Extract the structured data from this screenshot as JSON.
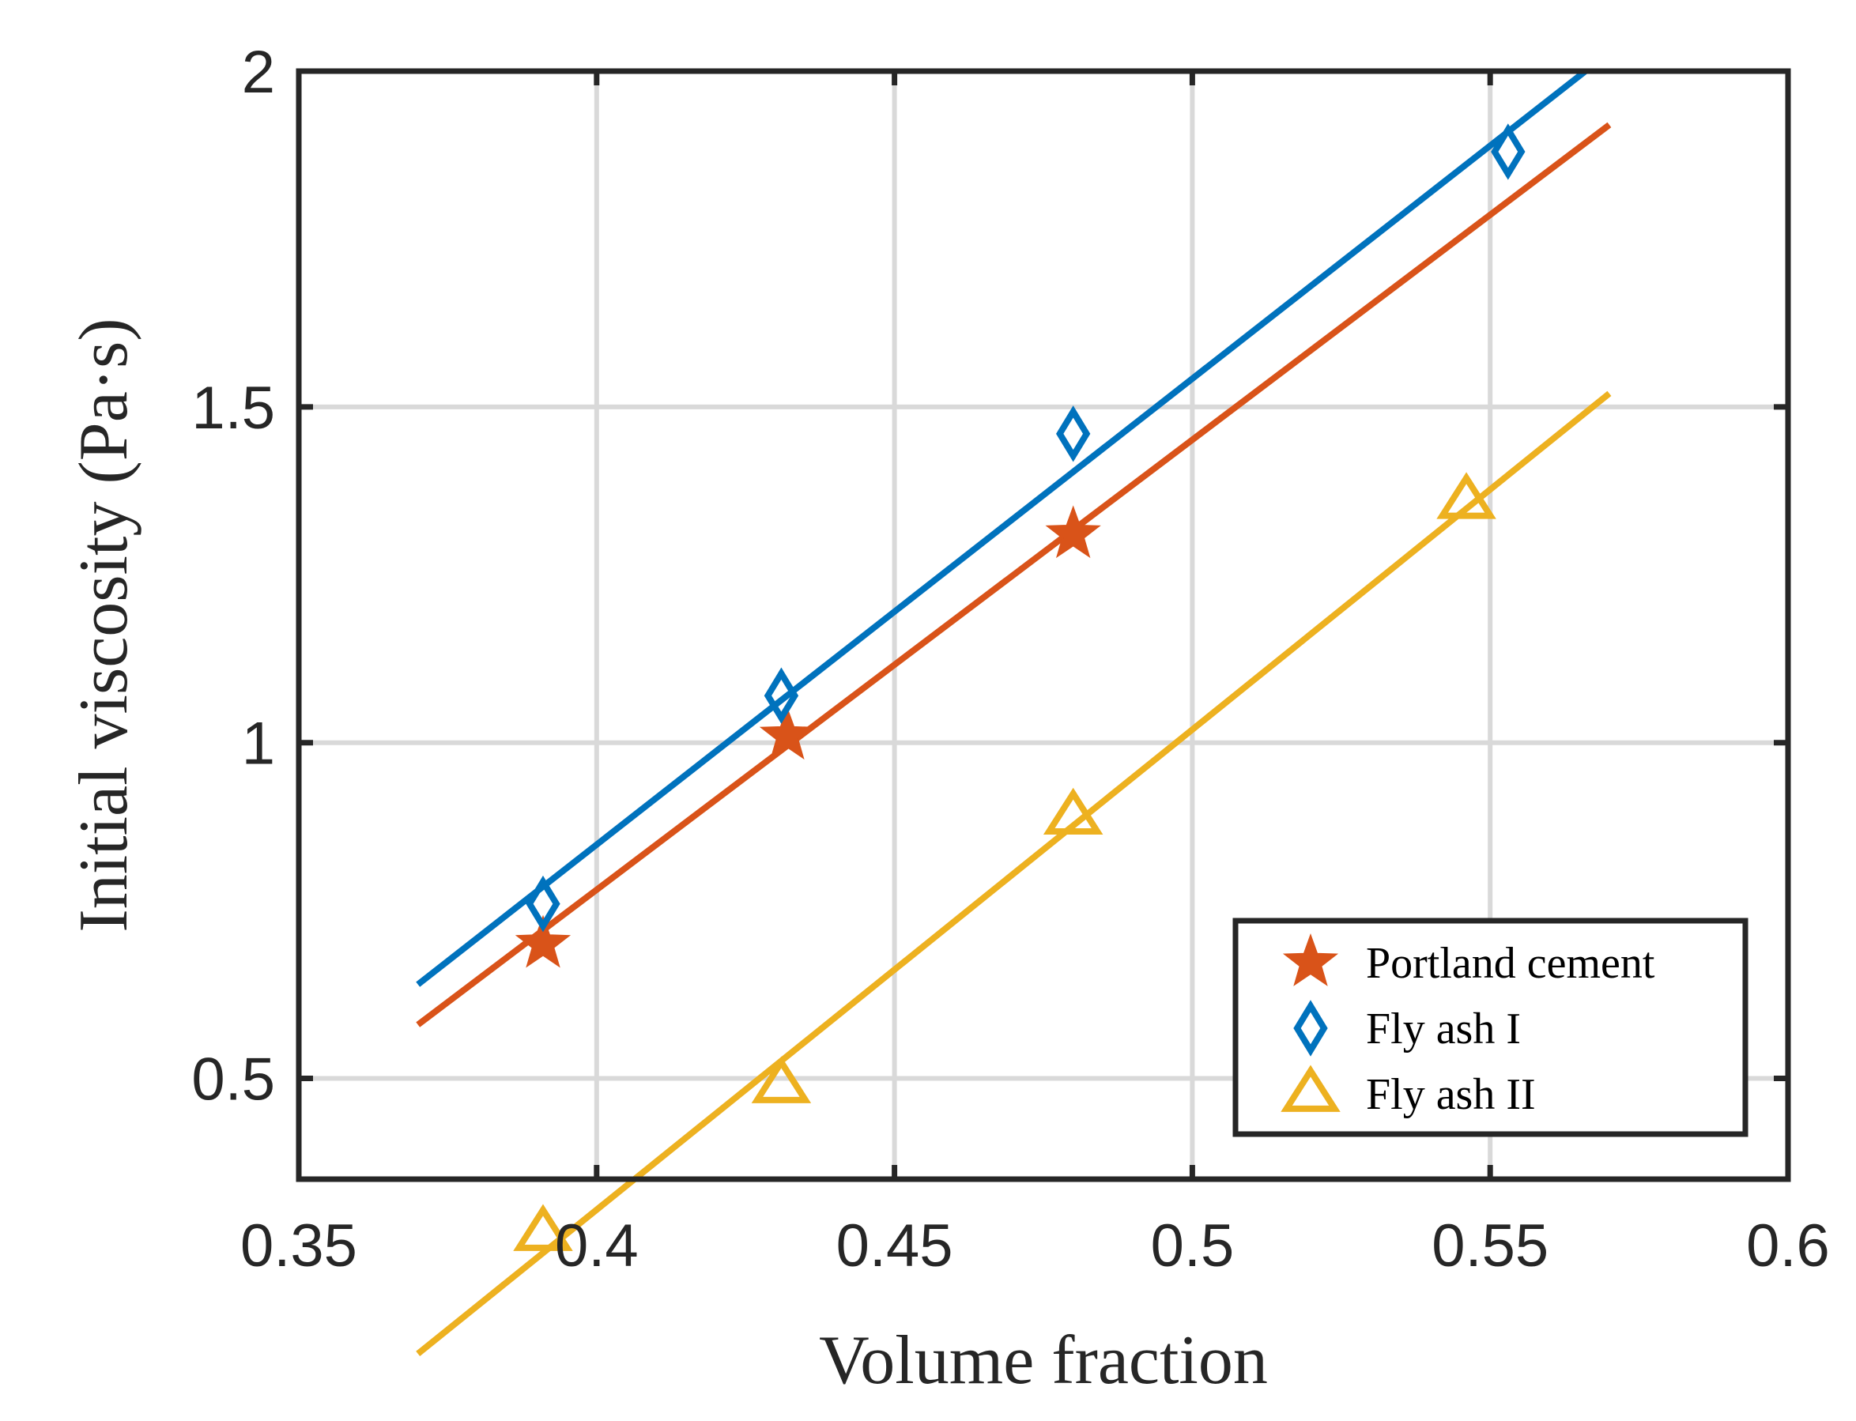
{
  "chart_data": {
    "type": "scatter",
    "xlabel": "Volume fraction",
    "ylabel": "Initial viscosity (Pa·s)",
    "xlim": [
      0.35,
      0.6
    ],
    "ylim": [
      0.35,
      2.0
    ],
    "xticks": [
      "0.35",
      "0.4",
      "0.45",
      "0.5",
      "0.55",
      "0.6"
    ],
    "yticks": [
      "0.5",
      "1",
      "1.5",
      "2"
    ],
    "grid": true,
    "legend_position": "bottom-right",
    "series": [
      {
        "name": "Portland cement",
        "marker": "star",
        "color": "#D95319",
        "points": [
          [
            0.391,
            0.7
          ],
          [
            0.432,
            1.01
          ],
          [
            0.48,
            1.31
          ]
        ],
        "fit": [
          [
            0.37,
            0.58
          ],
          [
            0.57,
            1.92
          ]
        ]
      },
      {
        "name": "Fly ash I",
        "marker": "diamond",
        "color": "#0072BD",
        "points": [
          [
            0.391,
            0.76
          ],
          [
            0.431,
            1.07
          ],
          [
            0.48,
            1.46
          ],
          [
            0.553,
            1.88
          ]
        ],
        "fit": [
          [
            0.37,
            0.64
          ],
          [
            0.566,
            2.0
          ]
        ]
      },
      {
        "name": "Fly ash II",
        "marker": "triangle",
        "color": "#EDB120",
        "points": [
          [
            0.391,
            0.27
          ],
          [
            0.431,
            0.49
          ],
          [
            0.48,
            0.89
          ],
          [
            0.546,
            1.36
          ]
        ],
        "fit": [
          [
            0.37,
            0.09
          ],
          [
            0.57,
            1.52
          ]
        ]
      }
    ]
  }
}
